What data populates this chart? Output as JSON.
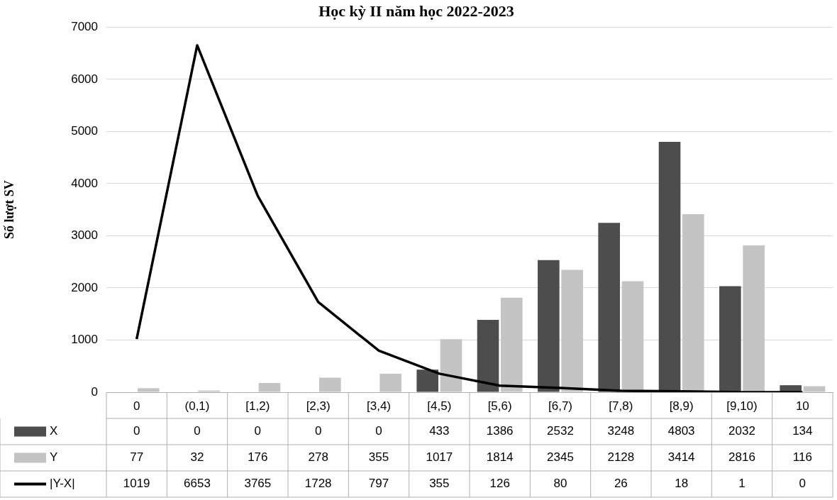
{
  "chart_data": {
    "type": "bar",
    "title": "Học kỳ II năm học 2022-2023",
    "ylabel": "Số lượt SV",
    "categories": [
      "0",
      "(0,1)",
      "[1,2)",
      "[2,3)",
      "[3,4)",
      "[4,5)",
      "[5,6)",
      "[6,7)",
      "[7,8)",
      "[8,9)",
      "[9,10)",
      "10"
    ],
    "series": [
      {
        "name": "X",
        "color": "#4d4d4d",
        "values": [
          0,
          0,
          0,
          0,
          0,
          433,
          1386,
          2532,
          3248,
          4803,
          2032,
          134
        ]
      },
      {
        "name": "Y",
        "color": "#c4c4c4",
        "values": [
          77,
          32,
          176,
          278,
          355,
          1017,
          1814,
          2345,
          2128,
          3414,
          2816,
          116
        ]
      },
      {
        "name": "|Y-X|",
        "type": "line",
        "color": "#000000",
        "values": [
          1019,
          6653,
          3765,
          1728,
          797,
          355,
          126,
          80,
          26,
          18,
          1,
          0
        ]
      }
    ],
    "ylim": [
      0,
      7000
    ],
    "yticks": [
      0,
      1000,
      2000,
      3000,
      4000,
      5000,
      6000,
      7000
    ],
    "grid": "y",
    "legend": "bottom",
    "data_labels": true,
    "marker": "none"
  }
}
